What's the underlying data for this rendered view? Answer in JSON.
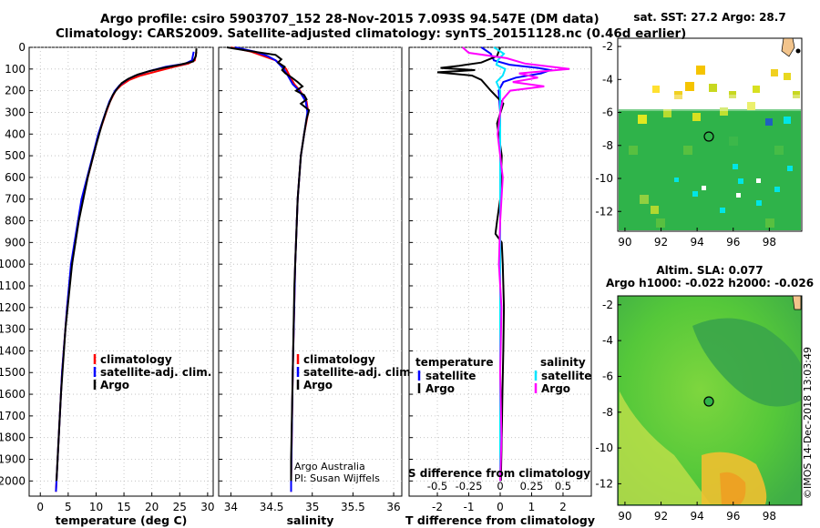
{
  "title_line1": "Argo profile: csiro 5903707_152 28-Nov-2015 7.093S 94.547E (DM data)",
  "title_line2": "Climatology: CARS2009. Satellite-adjusted climatology: synTS_20151128.nc (0.46d earlier)",
  "timestamp": "©IMOS 14-Dec-2018 13:03:49",
  "colors": {
    "climatology": "#ff0000",
    "satellite": "#0000ff",
    "argo": "#000000",
    "sat_salinity": "#00e5ff",
    "argo_salinity": "#ff00ff"
  },
  "depth_axis": {
    "ticks": [
      0,
      100,
      200,
      300,
      400,
      500,
      600,
      700,
      800,
      900,
      1000,
      1100,
      1200,
      1300,
      1400,
      1500,
      1600,
      1700,
      1800,
      1900,
      2000
    ]
  },
  "chart_data": [
    {
      "type": "line",
      "panel": "temperature",
      "xlabel": "temperature (deg C)",
      "xlim": [
        -2,
        31
      ],
      "ylim": [
        0,
        2070
      ],
      "y_reversed": true,
      "xticks": [
        "0",
        "5",
        "10",
        "15",
        "20",
        "25",
        "30"
      ],
      "legend": [
        "climatology",
        "satellite-adj. clim.",
        "Argo"
      ],
      "series": [
        {
          "name": "climatology",
          "depth": [
            20,
            60,
            75,
            90,
            110,
            130,
            150,
            175,
            200,
            250,
            300,
            400,
            500,
            700,
            1000,
            1200,
            1500,
            2000,
            2050
          ],
          "values": [
            28,
            27.7,
            26.5,
            24,
            21,
            18,
            16,
            14.5,
            13.5,
            12.5,
            11.8,
            10.5,
            9.5,
            7.5,
            5.6,
            4.8,
            3.9,
            2.9,
            2.8
          ]
        },
        {
          "name": "satellite-adj. clim.",
          "depth": [
            20,
            60,
            75,
            90,
            110,
            130,
            150,
            175,
            200,
            250,
            300,
            400,
            500,
            700,
            1000,
            1200,
            1500,
            2000,
            2050
          ],
          "values": [
            27.5,
            27.2,
            26,
            22.5,
            19.5,
            17,
            15.5,
            14.2,
            13.4,
            12.4,
            11.7,
            10.4,
            9.4,
            7.4,
            5.5,
            4.8,
            3.9,
            2.9,
            2.8
          ]
        },
        {
          "name": "Argo",
          "depth": [
            5,
            40,
            65,
            80,
            95,
            110,
            125,
            145,
            165,
            190,
            220,
            280,
            350,
            450,
            600,
            800,
            1000,
            1300,
            1600,
            2000
          ],
          "values": [
            28,
            27.9,
            27.4,
            25,
            22,
            19.5,
            17.5,
            15.8,
            14.6,
            13.8,
            13,
            12,
            11.1,
            10,
            8.5,
            6.9,
            5.7,
            4.5,
            3.7,
            2.9
          ]
        }
      ]
    },
    {
      "type": "line",
      "panel": "salinity",
      "xlabel": "salinity",
      "xlim": [
        33.85,
        36.1
      ],
      "ylim": [
        0,
        2070
      ],
      "y_reversed": true,
      "xticks": [
        "34",
        "34.5",
        "35",
        "35.5",
        "36"
      ],
      "legend": [
        "climatology",
        "satellite-adj. clim.",
        "Argo"
      ],
      "annotation": [
        "Argo Australia",
        "PI: Susan Wijffels"
      ],
      "series": [
        {
          "name": "climatology",
          "depth": [
            0,
            20,
            40,
            60,
            80,
            100,
            130,
            170,
            200,
            250,
            300,
            400,
            500,
            700,
            1000,
            1500,
            2000,
            2050
          ],
          "values": [
            34.0,
            34.25,
            34.4,
            34.55,
            34.62,
            34.68,
            34.72,
            34.78,
            34.85,
            34.93,
            34.95,
            34.9,
            34.86,
            34.82,
            34.79,
            34.76,
            34.74,
            34.74
          ]
        },
        {
          "name": "satellite-adj. clim.",
          "depth": [
            0,
            20,
            40,
            60,
            80,
            100,
            130,
            170,
            200,
            250,
            300,
            400,
            500,
            700,
            1000,
            1500,
            2000,
            2050
          ],
          "values": [
            34.05,
            34.3,
            34.45,
            34.55,
            34.6,
            34.65,
            34.7,
            34.76,
            34.84,
            34.92,
            34.94,
            34.9,
            34.86,
            34.82,
            34.79,
            34.76,
            34.74,
            34.74
          ]
        },
        {
          "name": "Argo",
          "depth": [
            0,
            15,
            35,
            55,
            70,
            90,
            105,
            120,
            140,
            160,
            180,
            200,
            220,
            240,
            260,
            290,
            330,
            400,
            500,
            700,
            900,
            1100,
            1300,
            1500,
            1700,
            1900,
            2000
          ],
          "values": [
            33.95,
            34.2,
            34.55,
            34.62,
            34.58,
            34.66,
            34.63,
            34.67,
            34.75,
            34.82,
            34.88,
            34.8,
            34.9,
            34.93,
            34.86,
            34.96,
            34.93,
            34.9,
            34.86,
            34.82,
            34.8,
            34.78,
            34.77,
            34.76,
            34.75,
            34.74,
            34.74
          ]
        }
      ]
    },
    {
      "type": "line",
      "panel": "difference",
      "xlabel": "T difference from climatology",
      "xlabel_top": "S difference from climatology",
      "xlim": [
        -2.9,
        2.9
      ],
      "ylim": [
        0,
        2070
      ],
      "y_reversed": true,
      "xticks": [
        "-2",
        "-1",
        "0",
        "1",
        "2"
      ],
      "xticks_s": [
        "-0.5",
        "-0.25",
        "0",
        "0.25",
        "0.5"
      ],
      "legend_left_title": "temperature",
      "legend_right_title": "salinity",
      "legend_left": [
        "satellite",
        "Argo"
      ],
      "legend_right": [
        "satellite",
        "Argo"
      ],
      "series": [
        {
          "name": "T satellite",
          "depth": [
            0,
            30,
            60,
            80,
            95,
            105,
            120,
            140,
            160,
            200,
            300,
            600,
            1000,
            1500,
            2000
          ],
          "values": [
            -0.6,
            -0.3,
            -0.2,
            0.3,
            1.2,
            1.6,
            1.3,
            0.5,
            0.1,
            -0.05,
            0,
            0,
            0,
            0,
            0
          ]
        },
        {
          "name": "T Argo",
          "depth": [
            0,
            40,
            70,
            85,
            95,
            105,
            115,
            130,
            150,
            200,
            260,
            350,
            500,
            700,
            800,
            860,
            900,
            1000,
            1200,
            1400,
            1600,
            1800,
            2000
          ],
          "values": [
            0.0,
            -0.1,
            -0.6,
            -1.3,
            -1.9,
            -0.8,
            -2.0,
            -0.9,
            -0.6,
            -0.3,
            0.1,
            -0.1,
            0.05,
            0.0,
            -0.1,
            -0.15,
            0.05,
            0.08,
            0.12,
            0.1,
            0.07,
            0.05,
            0.02
          ]
        },
        {
          "name": "S satellite",
          "depth": [
            0,
            30,
            60,
            80,
            100,
            130,
            160,
            200,
            300,
            600,
            1000,
            1500,
            2000
          ],
          "values": [
            -0.05,
            0.03,
            -0.02,
            -0.03,
            0.04,
            0.02,
            -0.03,
            0.0,
            0,
            0,
            0,
            0,
            0
          ]
        },
        {
          "name": "S Argo",
          "depth": [
            0,
            25,
            50,
            75,
            100,
            120,
            140,
            160,
            180,
            200,
            240,
            300,
            400,
            600,
            800,
            1000,
            1200,
            1500,
            1800,
            2000
          ],
          "values": [
            -0.3,
            -0.25,
            0.05,
            0.2,
            0.55,
            0.15,
            0.3,
            0.1,
            0.35,
            0.08,
            0.02,
            0.0,
            -0.02,
            0.02,
            0.0,
            -0.01,
            0.01,
            0.0,
            0.01,
            0.0
          ]
        }
      ]
    },
    {
      "type": "heatmap",
      "panel": "map_sst",
      "title": "sat. SST: 27.2 Argo: 28.7",
      "xticks": [
        "90",
        "92",
        "94",
        "96",
        "98"
      ],
      "yticks": [
        "-2",
        "-4",
        "-6",
        "-8",
        "-10",
        "-12"
      ],
      "xlim": [
        89.6,
        99.8
      ],
      "ylim": [
        -13.2,
        -1.5
      ],
      "marker": {
        "lon": 94.547,
        "lat": -7.093
      }
    },
    {
      "type": "heatmap",
      "panel": "map_sla",
      "title": "Altim. SLA: 0.077",
      "subtitle": "Argo h1000: -0.022 h2000: -0.026",
      "xticks": [
        "90",
        "92",
        "94",
        "96",
        "98"
      ],
      "yticks": [
        "-2",
        "-4",
        "-6",
        "-8",
        "-10",
        "-12"
      ],
      "xlim": [
        89.6,
        99.8
      ],
      "ylim": [
        -13.2,
        -1.5
      ],
      "marker": {
        "lon": 94.547,
        "lat": -7.093
      }
    }
  ]
}
